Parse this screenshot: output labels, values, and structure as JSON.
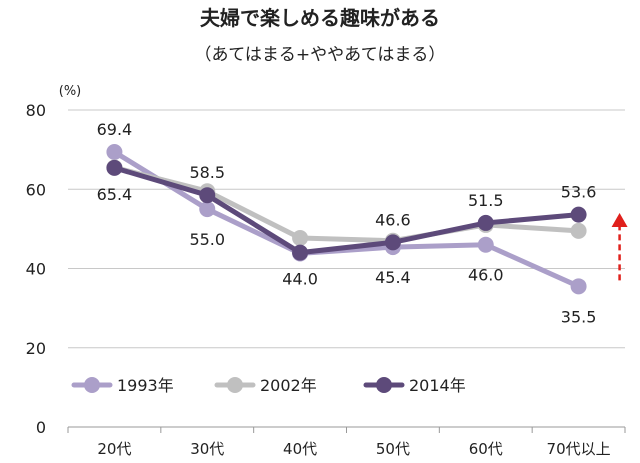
{
  "chart_data": {
    "type": "line",
    "title": "夫婦で楽しめる趣味がある",
    "subtitle": "（あてはまる+ややあてはまる）",
    "ylabel": "(%)",
    "ylim": [
      0,
      80
    ],
    "yticks": [
      0,
      20,
      40,
      60,
      80
    ],
    "categories": [
      "20代",
      "30代",
      "40代",
      "50代",
      "60代",
      "70代以上"
    ],
    "grid": true,
    "legend_position": "bottom-left",
    "series": [
      {
        "name": "1993年",
        "color": "#ab9fc9",
        "values": [
          69.4,
          55.0,
          43.8,
          45.4,
          46.0,
          35.5
        ],
        "labels": [
          "69.4",
          "55.0",
          "",
          "45.4",
          "46.0",
          "35.5"
        ]
      },
      {
        "name": "2002年",
        "color": "#c0c0c0",
        "values": [
          65.5,
          59.5,
          47.7,
          47.0,
          51.0,
          49.5
        ],
        "labels": [
          "",
          "",
          "",
          "",
          "",
          ""
        ]
      },
      {
        "name": "2014年",
        "color": "#5d4a7a",
        "values": [
          65.4,
          58.5,
          44.0,
          46.6,
          51.5,
          53.6
        ],
        "labels": [
          "65.4",
          "58.5",
          "44.0",
          "46.6",
          "51.5",
          "53.6"
        ]
      }
    ],
    "annotation": {
      "type": "dashed-up-arrow",
      "color": "#e0201c",
      "category": "70代以上"
    }
  }
}
